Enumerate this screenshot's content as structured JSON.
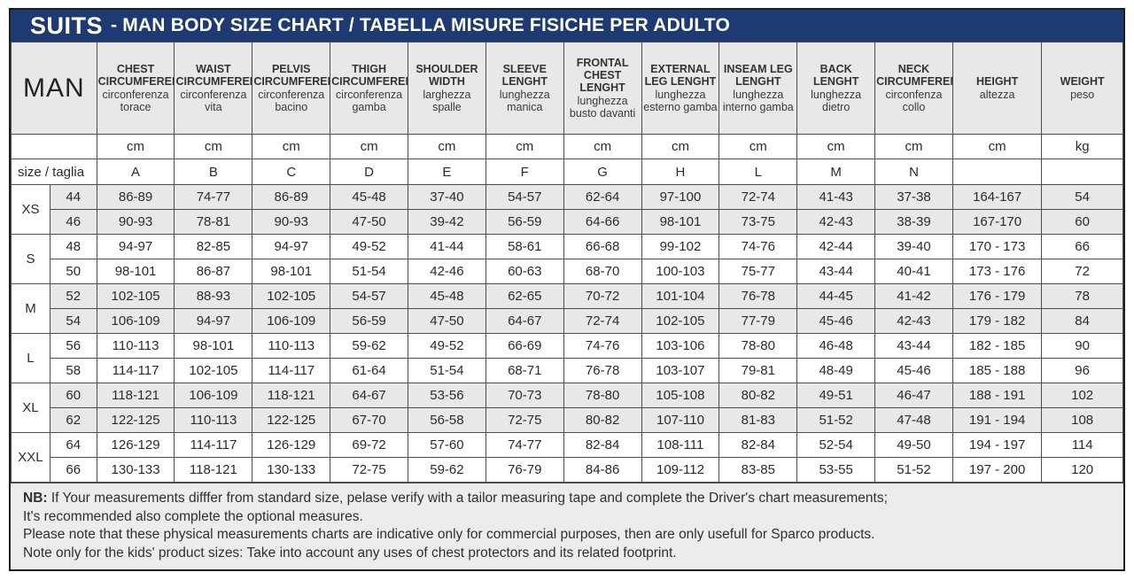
{
  "title": {
    "product": "SUITS",
    "rest": "- MAN BODY SIZE CHART / TABELLA MISURE FISICHE PER ADULTO"
  },
  "colors": {
    "header_bar_blue": "#1d3b72",
    "shaded_row_gray": "#e8e8e8",
    "notes_bg": "#ececec",
    "border": "#4d4d4d"
  },
  "chart_data": {
    "type": "table",
    "title": "SUITS - MAN BODY SIZE CHART / TABELLA MISURE FISICHE PER ADULTO",
    "row_label": "MAN",
    "size_label": "size / taglia",
    "columns": [
      {
        "en": "CHEST CIRCUMFERENCE",
        "it": "circonferenza torace",
        "unit": "cm",
        "letter": "A"
      },
      {
        "en": "WAIST CIRCUMFERENCE",
        "it": "circonferenza vita",
        "unit": "cm",
        "letter": "B"
      },
      {
        "en": "PELVIS CIRCUMFERENCE",
        "it": "circonferenza bacino",
        "unit": "cm",
        "letter": "C"
      },
      {
        "en": "THIGH CIRCUMFERENCE",
        "it": "circonferenza gamba",
        "unit": "cm",
        "letter": "D"
      },
      {
        "en": "SHOULDER WIDTH",
        "it": "larghezza spalle",
        "unit": "cm",
        "letter": "E"
      },
      {
        "en": "SLEEVE LENGHT",
        "it": "lunghezza manica",
        "unit": "cm",
        "letter": "F"
      },
      {
        "en": "FRONTAL CHEST LENGHT",
        "it": "lunghezza busto davanti",
        "unit": "cm",
        "letter": "G"
      },
      {
        "en": "EXTERNAL LEG LENGHT",
        "it": "lunghezza esterno gamba",
        "unit": "cm",
        "letter": "H"
      },
      {
        "en": "INSEAM LEG LENGHT",
        "it": "lunghezza interno gamba",
        "unit": "cm",
        "letter": "L"
      },
      {
        "en": "BACK LENGHT",
        "it": "lunghezza dietro",
        "unit": "cm",
        "letter": "M"
      },
      {
        "en": "NECK CIRCUMFERENCE",
        "it": "circonfenza collo",
        "unit": "cm",
        "letter": "N"
      },
      {
        "en": "HEIGHT",
        "it": "altezza",
        "unit": "cm",
        "letter": ""
      },
      {
        "en": "WEIGHT",
        "it": "peso",
        "unit": "kg",
        "letter": ""
      }
    ],
    "size_groups": [
      {
        "label": "XS",
        "rows": [
          {
            "size": "44",
            "values": [
              "86-89",
              "74-77",
              "86-89",
              "45-48",
              "37-40",
              "54-57",
              "62-64",
              "97-100",
              "72-74",
              "41-43",
              "37-38",
              "164-167",
              "54"
            ]
          },
          {
            "size": "46",
            "values": [
              "90-93",
              "78-81",
              "90-93",
              "47-50",
              "39-42",
              "56-59",
              "64-66",
              "98-101",
              "73-75",
              "42-43",
              "38-39",
              "167-170",
              "60"
            ]
          }
        ]
      },
      {
        "label": "S",
        "rows": [
          {
            "size": "48",
            "values": [
              "94-97",
              "82-85",
              "94-97",
              "49-52",
              "41-44",
              "58-61",
              "66-68",
              "99-102",
              "74-76",
              "42-44",
              "39-40",
              "170 - 173",
              "66"
            ]
          },
          {
            "size": "50",
            "values": [
              "98-101",
              "86-87",
              "98-101",
              "51-54",
              "42-46",
              "60-63",
              "68-70",
              "100-103",
              "75-77",
              "43-44",
              "40-41",
              "173 - 176",
              "72"
            ]
          }
        ]
      },
      {
        "label": "M",
        "rows": [
          {
            "size": "52",
            "values": [
              "102-105",
              "88-93",
              "102-105",
              "54-57",
              "45-48",
              "62-65",
              "70-72",
              "101-104",
              "76-78",
              "44-45",
              "41-42",
              "176 - 179",
              "78"
            ]
          },
          {
            "size": "54",
            "values": [
              "106-109",
              "94-97",
              "106-109",
              "56-59",
              "47-50",
              "64-67",
              "72-74",
              "102-105",
              "77-79",
              "45-46",
              "42-43",
              "179 - 182",
              "84"
            ]
          }
        ]
      },
      {
        "label": "L",
        "rows": [
          {
            "size": "56",
            "values": [
              "110-113",
              "98-101",
              "110-113",
              "59-62",
              "49-52",
              "66-69",
              "74-76",
              "103-106",
              "78-80",
              "46-48",
              "43-44",
              "182 - 185",
              "90"
            ]
          },
          {
            "size": "58",
            "values": [
              "114-117",
              "102-105",
              "114-117",
              "61-64",
              "51-54",
              "68-71",
              "76-78",
              "103-107",
              "79-81",
              "48-49",
              "45-46",
              "185 - 188",
              "96"
            ]
          }
        ]
      },
      {
        "label": "XL",
        "rows": [
          {
            "size": "60",
            "values": [
              "118-121",
              "106-109",
              "118-121",
              "64-67",
              "53-56",
              "70-73",
              "78-80",
              "105-108",
              "80-82",
              "49-51",
              "46-47",
              "188 - 191",
              "102"
            ]
          },
          {
            "size": "62",
            "values": [
              "122-125",
              "110-113",
              "122-125",
              "67-70",
              "56-58",
              "72-75",
              "80-82",
              "107-110",
              "81-83",
              "51-52",
              "47-48",
              "191 - 194",
              "108"
            ]
          }
        ]
      },
      {
        "label": "XXL",
        "rows": [
          {
            "size": "64",
            "values": [
              "126-129",
              "114-117",
              "126-129",
              "69-72",
              "57-60",
              "74-77",
              "82-84",
              "108-111",
              "82-84",
              "52-54",
              "49-50",
              "194 - 197",
              "114"
            ]
          },
          {
            "size": "66",
            "values": [
              "130-133",
              "118-121",
              "130-133",
              "72-75",
              "59-62",
              "76-79",
              "84-86",
              "109-112",
              "83-85",
              "53-55",
              "51-52",
              "197 - 200",
              "120"
            ]
          }
        ]
      }
    ]
  },
  "notes": {
    "nb_label": "NB:",
    "lines": [
      "If Your measurements difffer from standard size, pelase verify with a tailor measuring tape and complete the Driver's chart measurements;",
      "It's recommended also complete the optional measures.",
      "Please note that these physical measurements charts are indicative only for commercial purposes, then are only usefull for Sparco products.",
      "Note only for the kids' product sizes: Take into account any uses of chest protectors and its related footprint."
    ]
  }
}
